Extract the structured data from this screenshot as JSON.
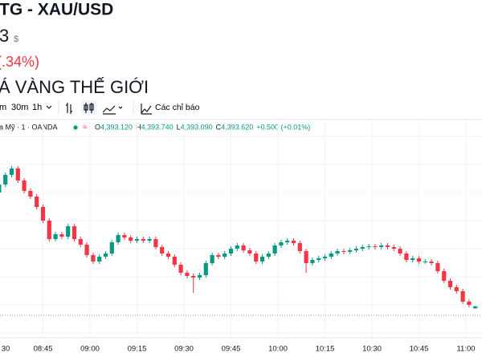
{
  "header": {
    "title": "TG - XAU/USD",
    "price": "3",
    "currency": "$",
    "change": "(.34%)",
    "section": "Á VÀNG THẾ GIỚI"
  },
  "toolbar": {
    "intervals": [
      "m",
      "30m",
      "1h"
    ],
    "indicators": "Các chỉ báo"
  },
  "legend": {
    "symbol": "a Mỹ · 1 · OANDA",
    "approx": "≈",
    "ohlc": [
      {
        "key": "O",
        "value": "4,393.120"
      },
      {
        "key": "H",
        "value": "4,393.740"
      },
      {
        "key": "L",
        "value": "4,393.090"
      },
      {
        "key": "C",
        "value": "4,393.620"
      }
    ],
    "change": "+0.500 (+0.01%)"
  },
  "chart_data": {
    "type": "candlestick",
    "up_color": "#089981",
    "down_color": "#f23645",
    "open": [
      4422.0,
      4424.0,
      4426.4,
      4428.0,
      4425.0,
      4422.4,
      4421.0,
      4418.4,
      4415.0,
      4410.4,
      4411.6,
      4411.0,
      4413.6,
      4410.4,
      4409.0,
      4406.4,
      4404.8,
      4406.0,
      4406.8,
      4409.6,
      4411.4,
      4410.8,
      4410.0,
      4410.4,
      4410.0,
      4410.4,
      4408.4,
      4406.8,
      4406.0,
      4404.0,
      4402.0,
      4401.2,
      4400.8,
      4401.4,
      4404.4,
      4406.4,
      4406.0,
      4406.8,
      4408.0,
      4408.8,
      4407.6,
      4406.8,
      4404.8,
      4406.0,
      4406.8,
      4408.8,
      4409.6,
      4410.0,
      4409.4,
      4407.4,
      4404.4,
      4405.2,
      4405.6,
      4406.0,
      4406.8,
      4407.4,
      4407.2,
      4407.6,
      4408.0,
      4408.4,
      4408.6,
      4408.4,
      4408.8,
      4408.4,
      4408.0,
      4406.8,
      4405.2,
      4405.6,
      4404.8,
      4404.8,
      4404.4,
      4402.4,
      4400.0,
      4398.4,
      4397.4,
      4394.8,
      4393.12
    ],
    "high": [
      4424.6,
      4427.0,
      4428.6,
      4428.6,
      4425.6,
      4423.0,
      4421.6,
      4419.0,
      4415.6,
      4412.2,
      4412.2,
      4414.2,
      4414.2,
      4411.0,
      4409.6,
      4407.0,
      4406.6,
      4407.4,
      4410.2,
      4412.0,
      4412.0,
      4411.4,
      4411.0,
      4411.0,
      4411.0,
      4411.0,
      4409.0,
      4407.4,
      4406.6,
      4404.6,
      4402.6,
      4401.8,
      4402.0,
      4405.0,
      4407.0,
      4407.0,
      4407.4,
      4408.6,
      4409.4,
      4409.4,
      4408.2,
      4407.4,
      4406.6,
      4407.4,
      4409.4,
      4410.2,
      4410.6,
      4410.6,
      4410.0,
      4408.0,
      4405.8,
      4406.2,
      4406.6,
      4407.4,
      4408.0,
      4408.0,
      4408.2,
      4408.6,
      4409.0,
      4409.2,
      4409.2,
      4409.4,
      4409.4,
      4409.0,
      4408.6,
      4407.4,
      4406.2,
      4406.2,
      4405.4,
      4405.4,
      4405.0,
      4403.0,
      4400.6,
      4399.0,
      4398.0,
      4395.4,
      4393.74
    ],
    "low": [
      4421.4,
      4423.4,
      4425.8,
      4424.4,
      4421.8,
      4420.4,
      4417.8,
      4414.4,
      4409.8,
      4409.8,
      4410.4,
      4410.4,
      4409.8,
      4408.4,
      4405.8,
      4404.2,
      4404.2,
      4405.4,
      4406.2,
      4409.0,
      4410.2,
      4409.4,
      4409.4,
      4409.4,
      4409.4,
      4407.8,
      4406.2,
      4405.4,
      4403.4,
      4401.4,
      4400.6,
      4397.0,
      4400.2,
      4400.8,
      4403.8,
      4405.4,
      4405.4,
      4406.2,
      4407.4,
      4407.0,
      4406.2,
      4404.2,
      4404.2,
      4405.4,
      4406.2,
      4408.2,
      4409.0,
      4408.8,
      4406.8,
      4402.0,
      4403.8,
      4404.6,
      4405.0,
      4405.4,
      4406.2,
      4406.6,
      4406.6,
      4407.0,
      4407.4,
      4407.8,
      4407.8,
      4407.8,
      4407.8,
      4407.4,
      4406.2,
      4404.6,
      4404.6,
      4404.2,
      4404.2,
      4403.8,
      4401.8,
      4399.4,
      4397.8,
      4396.8,
      4394.2,
      4393.4,
      4393.09
    ],
    "close": [
      4424.0,
      4426.4,
      4428.0,
      4425.0,
      4422.4,
      4421.0,
      4418.4,
      4415.0,
      4410.4,
      4411.6,
      4411.0,
      4413.6,
      4410.4,
      4409.0,
      4406.4,
      4404.8,
      4406.0,
      4406.8,
      4409.6,
      4411.4,
      4410.8,
      4410.0,
      4410.4,
      4410.0,
      4410.4,
      4408.4,
      4406.8,
      4406.0,
      4404.0,
      4402.0,
      4401.2,
      4400.8,
      4401.4,
      4404.4,
      4406.4,
      4406.0,
      4406.8,
      4408.0,
      4408.8,
      4407.6,
      4406.8,
      4404.8,
      4406.0,
      4406.8,
      4408.8,
      4409.6,
      4410.0,
      4409.4,
      4407.4,
      4404.4,
      4405.2,
      4405.6,
      4406.0,
      4406.8,
      4407.4,
      4407.2,
      4407.6,
      4408.0,
      4408.4,
      4408.6,
      4408.4,
      4408.8,
      4408.4,
      4408.0,
      4406.8,
      4405.2,
      4405.6,
      4404.8,
      4404.8,
      4404.4,
      4402.4,
      4400.0,
      4398.4,
      4397.4,
      4394.8,
      4394.0,
      4393.62
    ],
    "ylim": [
      4386,
      4436
    ],
    "price_line": 4391.4,
    "xticks": [
      {
        "value": -0.5,
        "label": "30"
      },
      {
        "value": 7,
        "label": "08:45"
      },
      {
        "value": 14.5,
        "label": "09:00"
      },
      {
        "value": 22,
        "label": "09:15"
      },
      {
        "value": 29.5,
        "label": "09:30"
      },
      {
        "value": 37,
        "label": "09:45"
      },
      {
        "value": 44.5,
        "label": "10:00"
      },
      {
        "value": 52,
        "label": "10:15"
      },
      {
        "value": 59.5,
        "label": "10:30"
      },
      {
        "value": 67,
        "label": "10:45"
      },
      {
        "value": 74.5,
        "label": "11:00"
      }
    ],
    "grid": true
  }
}
